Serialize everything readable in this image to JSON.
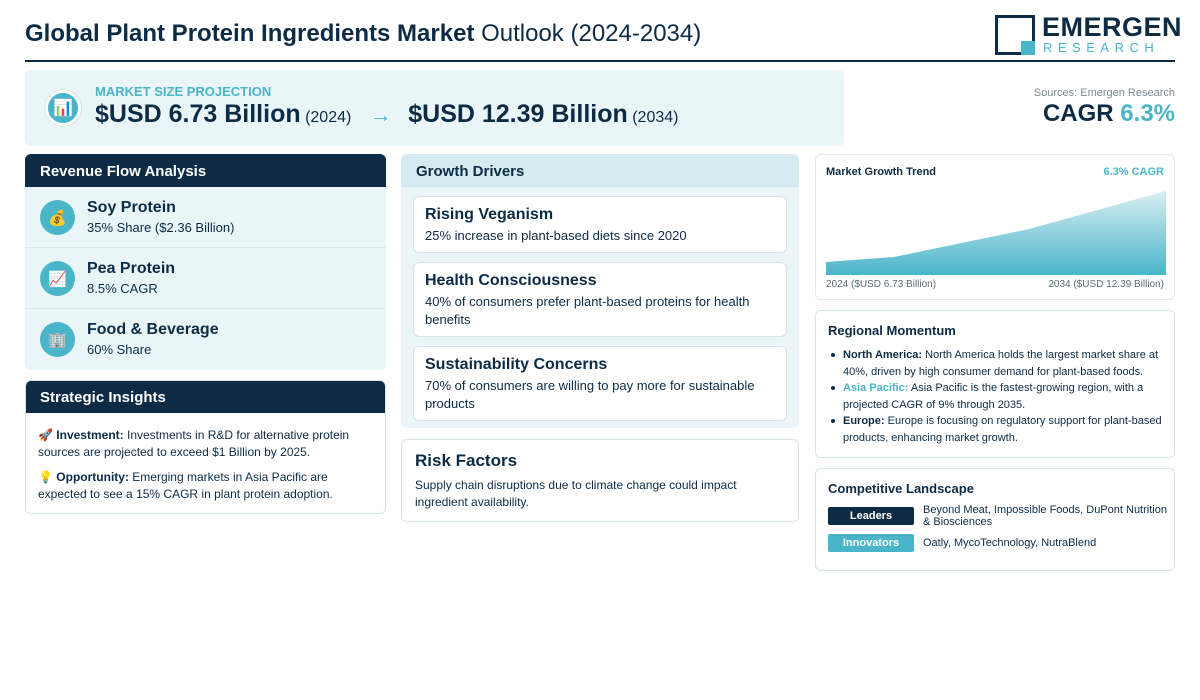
{
  "header": {
    "title_bold": "Global Plant Protein Ingredients Market",
    "title_light": "Outlook (2024-2034)",
    "logo_main": "EMERGEN",
    "logo_sub": "RESEARCH"
  },
  "projection": {
    "icon": "bar-chart-icon",
    "label": "MARKET SIZE PROJECTION",
    "start_value": "$USD 6.73 Billion",
    "start_year": "(2024)",
    "arrow": "→",
    "end_value": "$USD 12.39 Billion",
    "end_year": "(2034)"
  },
  "summary": {
    "sources": "Sources: Emergen Research",
    "cagr_label": "CAGR",
    "cagr_value": "6.3%"
  },
  "revenue": {
    "title": "Revenue Flow Analysis",
    "items": [
      {
        "icon": "money-bag-icon",
        "glyph": "💰",
        "name": "Soy Protein",
        "detail": "35% Share ($2.36 Billion)"
      },
      {
        "icon": "trend-up-icon",
        "glyph": "📈",
        "name": "Pea Protein",
        "detail": "8.5% CAGR"
      },
      {
        "icon": "building-icon",
        "glyph": "🏢",
        "name": "Food & Beverage",
        "detail": "60% Share"
      }
    ]
  },
  "strategic": {
    "title": "Strategic Insights",
    "items": [
      {
        "glyph": "🚀",
        "label": "Investment:",
        "text": "Investments in R&D for alternative protein sources are projected to exceed $1 Billion by 2025."
      },
      {
        "glyph": "💡",
        "label": "Opportunity:",
        "text": "Emerging markets in Asia Pacific are expected to see a 15% CAGR in plant protein adoption."
      }
    ]
  },
  "drivers": {
    "title": "Growth Drivers",
    "items": [
      {
        "title": "Rising Veganism",
        "text": "25% increase in plant-based diets since 2020"
      },
      {
        "title": "Health Consciousness",
        "text": "40% of consumers prefer plant-based proteins for health benefits"
      },
      {
        "title": "Sustainability Concerns",
        "text": "70% of consumers are willing to pay more for sustainable products"
      }
    ]
  },
  "risk": {
    "title": "Risk Factors",
    "text": "Supply chain disruptions due to climate change could impact ingredient availability."
  },
  "trend": {
    "title": "Market Growth Trend",
    "cagr": "6.3% CAGR",
    "start_label": "2024 ($USD 6.73 Billion)",
    "end_label": "2034 ($USD 12.39 Billion)",
    "colors": {
      "top": "#4ab5c9",
      "bottom": "#d8eef3"
    }
  },
  "chart_data": {
    "type": "area",
    "x": [
      2024,
      2034
    ],
    "values": [
      6.73,
      12.39
    ],
    "unit": "$USD Billion"
  },
  "regional": {
    "title": "Regional Momentum",
    "items": [
      {
        "label": "North America:",
        "text": "North America holds the largest market share at 40%, driven by high consumer demand for plant-based foods.",
        "accent": false
      },
      {
        "label": "Asia Pacific:",
        "text": "Asia Pacific is the fastest-growing region, with a projected CAGR of 9% through 2035.",
        "accent": true
      },
      {
        "label": "Europe:",
        "text": "Europe is focusing on regulatory support for plant-based products, enhancing market growth.",
        "accent": false
      }
    ]
  },
  "competitive": {
    "title": "Competitive Landscape",
    "leaders_label": "Leaders",
    "leaders": "Beyond Meat, Impossible Foods, DuPont Nutrition & Biosciences",
    "innovators_label": "Innovators",
    "innovators": "Oatly, MycoTechnology, NutraBlend"
  },
  "colors": {
    "navy": "#0d2b45",
    "teal": "#4ab5c9",
    "panel": "#eaf5f7"
  }
}
